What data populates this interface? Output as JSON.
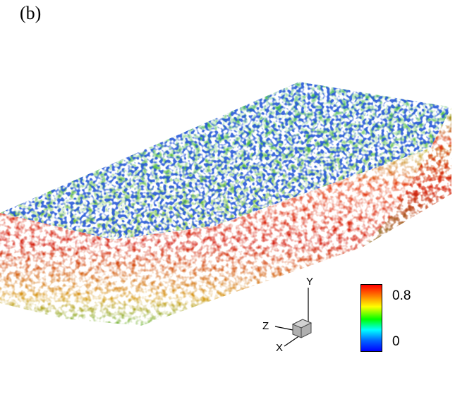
{
  "panel_label": "(b)",
  "colorbar": {
    "max_label": "0.8",
    "min_label": "0",
    "colors": [
      "#ff0000",
      "#ff8800",
      "#ffff00",
      "#00ff00",
      "#00ffff",
      "#0066ff",
      "#0000ff"
    ]
  },
  "axes_triad": {
    "y_label": "Y",
    "z_label": "Z",
    "x_label": "X"
  }
}
